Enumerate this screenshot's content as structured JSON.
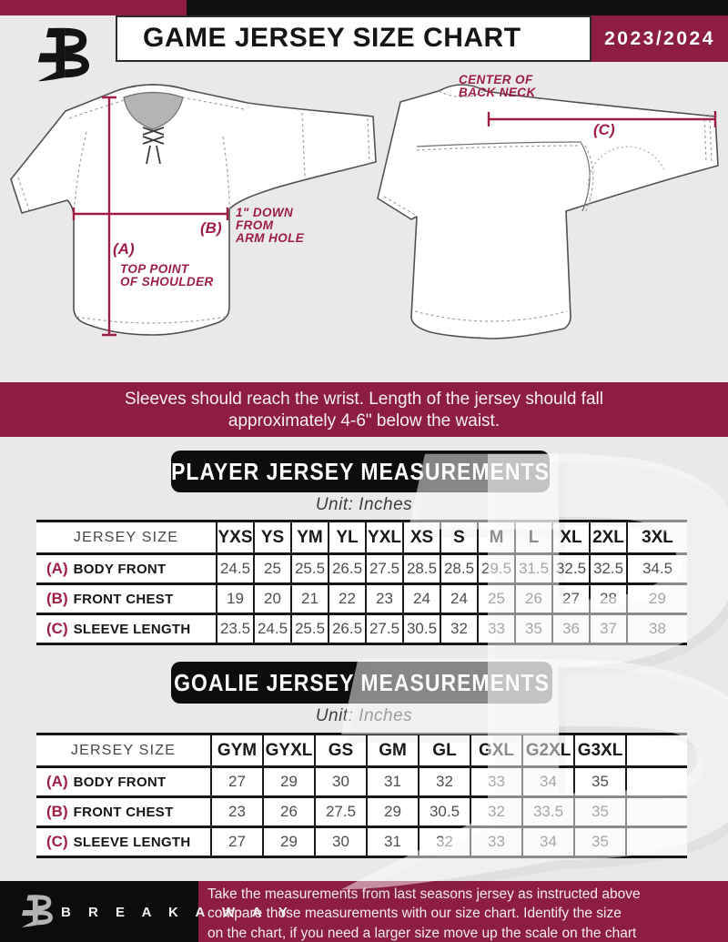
{
  "header": {
    "title": "GAME JERSEY SIZE CHART",
    "season": "2023/2024"
  },
  "diagram": {
    "front": {
      "label_a": "(A)",
      "label_b": "(B)",
      "note_a": "TOP POINT\nOF SHOULDER",
      "note_b": "1\" DOWN\nFROM\nARM HOLE"
    },
    "back": {
      "label_c": "(C)",
      "note_c": "CENTER OF\nBACK NECK"
    }
  },
  "notice": "Sleeves should reach the wrist. Length of the jersey should fall\napproximately 4-6\" below the waist.",
  "player_table": {
    "title": "PLAYER JERSEY MEASUREMENTS",
    "unit": "Unit: Inches",
    "size_header": "JERSEY SIZE",
    "sizes": [
      "YXS",
      "YS",
      "YM",
      "YL",
      "YXL",
      "XS",
      "S",
      "M",
      "L",
      "XL",
      "2XL",
      "3XL"
    ],
    "rows": [
      {
        "key": "(A)",
        "label": "BODY FRONT",
        "values": [
          "24.5",
          "25",
          "25.5",
          "26.5",
          "27.5",
          "28.5",
          "28.5",
          "29.5",
          "31.5",
          "32.5",
          "32.5",
          "34.5"
        ]
      },
      {
        "key": "(B)",
        "label": "FRONT CHEST",
        "values": [
          "19",
          "20",
          "21",
          "22",
          "23",
          "24",
          "24",
          "25",
          "26",
          "27",
          "28",
          "29"
        ]
      },
      {
        "key": "(C)",
        "label": "SLEEVE LENGTH",
        "values": [
          "23.5",
          "24.5",
          "25.5",
          "26.5",
          "27.5",
          "30.5",
          "32",
          "33",
          "35",
          "36",
          "37",
          "38"
        ]
      }
    ]
  },
  "goalie_table": {
    "title": "GOALIE JERSEY MEASUREMENTS",
    "unit": "Unit: Inches",
    "size_header": "JERSEY SIZE",
    "sizes": [
      "GYM",
      "GYXL",
      "GS",
      "GM",
      "GL",
      "GXL",
      "G2XL",
      "G3XL",
      ""
    ],
    "rows": [
      {
        "key": "(A)",
        "label": "BODY FRONT",
        "values": [
          "27",
          "29",
          "30",
          "31",
          "32",
          "33",
          "34",
          "35",
          ""
        ]
      },
      {
        "key": "(B)",
        "label": "FRONT CHEST",
        "values": [
          "23",
          "26",
          "27.5",
          "29",
          "30.5",
          "32",
          "33.5",
          "35",
          ""
        ]
      },
      {
        "key": "(C)",
        "label": "SLEEVE LENGTH",
        "values": [
          "27",
          "29",
          "30",
          "31",
          "32",
          "33",
          "34",
          "35",
          ""
        ]
      }
    ]
  },
  "footer": {
    "brand": "B R E A K A W A Y",
    "note": "Take the measurements from last seasons jersey as instructed above\ncompare those measurements  with our size chart. Identify the size\non the chart, if you need a larger size move up the scale on the chart"
  },
  "colors": {
    "maroon": "#8d1e41",
    "black": "#0d0d0d",
    "annotation": "#9e1e44",
    "page_bg": "#eae9ea"
  }
}
